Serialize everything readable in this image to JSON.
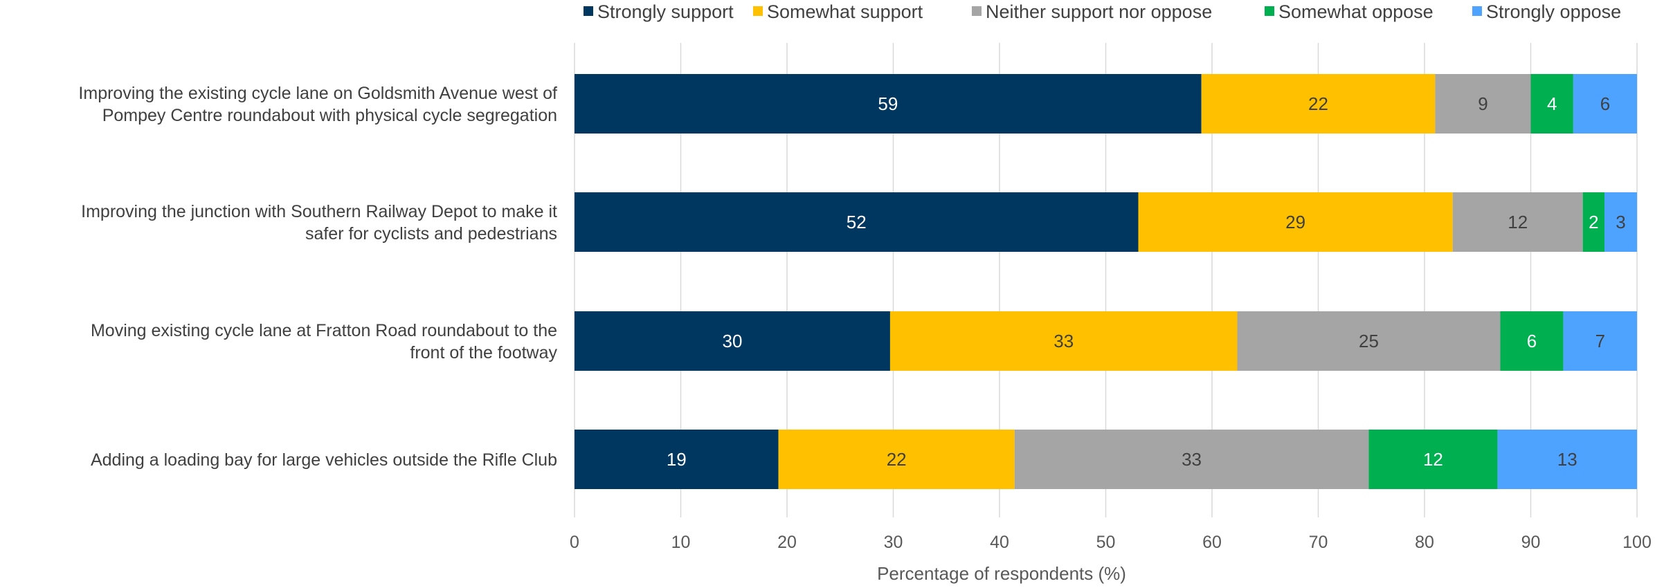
{
  "chart_data": {
    "type": "bar",
    "orientation": "horizontal",
    "stacked": true,
    "categories": [
      [
        "Improving the existing cycle lane on Goldsmith Avenue west of",
        "Pompey Centre roundabout with physical cycle segregation"
      ],
      [
        "Improving the junction with Southern Railway Depot to make it",
        "safer for cyclists and pedestrians"
      ],
      [
        "Moving existing cycle lane at Fratton Road roundabout to the",
        "front of the footway"
      ],
      [
        "Adding a loading bay for large vehicles outside the Rifle Club"
      ]
    ],
    "series": [
      {
        "name": "Strongly support",
        "color": "#003760",
        "label_color": "#ffffff",
        "values": [
          59,
          52,
          30,
          19
        ]
      },
      {
        "name": "Somewhat support",
        "color": "#ffc000",
        "label_color": "#404040",
        "values": [
          22,
          29,
          33,
          22
        ]
      },
      {
        "name": "Neither support nor oppose",
        "color": "#a5a5a5",
        "label_color": "#404040",
        "values": [
          9,
          12,
          25,
          33
        ]
      },
      {
        "name": "Somewhat oppose",
        "color": "#00b050",
        "label_color": "#ffffff",
        "values": [
          4,
          2,
          6,
          12
        ]
      },
      {
        "name": "Strongly oppose",
        "color": "#4da3ff",
        "label_color": "#404040",
        "values": [
          6,
          3,
          7,
          13
        ]
      }
    ],
    "xlabel": "Percentage of respondents (%)",
    "ylabel": "",
    "xlim": [
      0,
      100
    ],
    "xticks": [
      0,
      10,
      20,
      30,
      40,
      50,
      60,
      70,
      80,
      90,
      100
    ],
    "grid": true,
    "legend_position": "top"
  }
}
